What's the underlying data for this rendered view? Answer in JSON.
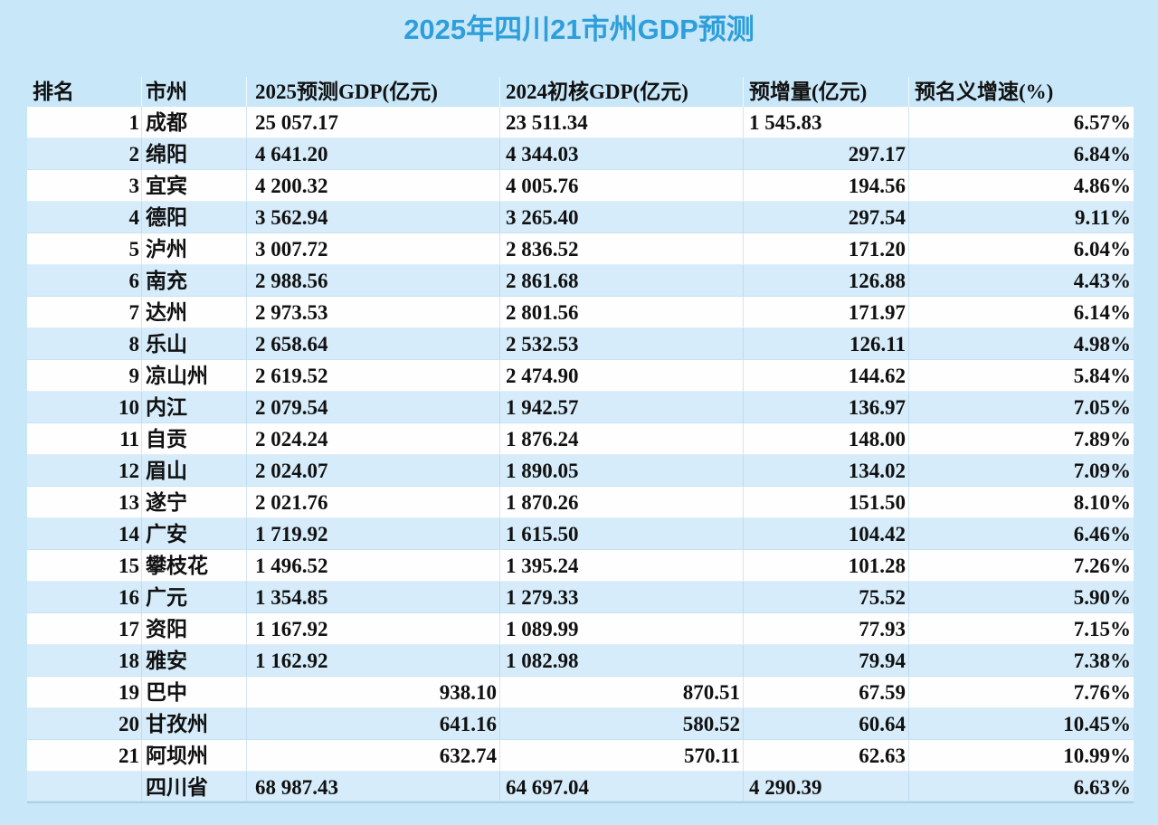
{
  "title": "2025年四川21市州GDP预测",
  "colors": {
    "page_background": "#c8e7f8",
    "row_white": "#fefefe",
    "row_blue": "#d6ecfa",
    "title_blue": "#2e9edb",
    "text": "#111111"
  },
  "table": {
    "columns": [
      {
        "key": "rank",
        "label": "排名"
      },
      {
        "key": "city",
        "label": "市州"
      },
      {
        "key": "gdp2025",
        "label": "2025预测GDP(亿元)"
      },
      {
        "key": "gdp2024",
        "label": "2024初核GDP(亿元)"
      },
      {
        "key": "increase",
        "label": "预增量(亿元)"
      },
      {
        "key": "growth",
        "label": "预名义增速(%)"
      }
    ],
    "rows": [
      {
        "rank": "1",
        "city": "成都",
        "gdp2025": "25 057.17",
        "gdp2024": "23 511.34",
        "increase": "1 545.83",
        "growth": "6.57%"
      },
      {
        "rank": "2",
        "city": "绵阳",
        "gdp2025": "4 641.20",
        "gdp2024": "4 344.03",
        "increase": "297.17",
        "growth": "6.84%"
      },
      {
        "rank": "3",
        "city": "宜宾",
        "gdp2025": "4 200.32",
        "gdp2024": "4 005.76",
        "increase": "194.56",
        "growth": "4.86%"
      },
      {
        "rank": "4",
        "city": "德阳",
        "gdp2025": "3 562.94",
        "gdp2024": "3 265.40",
        "increase": "297.54",
        "growth": "9.11%"
      },
      {
        "rank": "5",
        "city": "泸州",
        "gdp2025": "3 007.72",
        "gdp2024": "2 836.52",
        "increase": "171.20",
        "growth": "6.04%"
      },
      {
        "rank": "6",
        "city": "南充",
        "gdp2025": "2 988.56",
        "gdp2024": "2 861.68",
        "increase": "126.88",
        "growth": "4.43%"
      },
      {
        "rank": "7",
        "city": "达州",
        "gdp2025": "2 973.53",
        "gdp2024": "2 801.56",
        "increase": "171.97",
        "growth": "6.14%"
      },
      {
        "rank": "8",
        "city": "乐山",
        "gdp2025": "2 658.64",
        "gdp2024": "2 532.53",
        "increase": "126.11",
        "growth": "4.98%"
      },
      {
        "rank": "9",
        "city": "凉山州",
        "gdp2025": "2 619.52",
        "gdp2024": "2 474.90",
        "increase": "144.62",
        "growth": "5.84%"
      },
      {
        "rank": "10",
        "city": "内江",
        "gdp2025": "2 079.54",
        "gdp2024": "1 942.57",
        "increase": "136.97",
        "growth": "7.05%"
      },
      {
        "rank": "11",
        "city": "自贡",
        "gdp2025": "2 024.24",
        "gdp2024": "1 876.24",
        "increase": "148.00",
        "growth": "7.89%"
      },
      {
        "rank": "12",
        "city": "眉山",
        "gdp2025": "2 024.07",
        "gdp2024": "1 890.05",
        "increase": "134.02",
        "growth": "7.09%"
      },
      {
        "rank": "13",
        "city": "遂宁",
        "gdp2025": "2 021.76",
        "gdp2024": "1 870.26",
        "increase": "151.50",
        "growth": "8.10%"
      },
      {
        "rank": "14",
        "city": "广安",
        "gdp2025": "1 719.92",
        "gdp2024": "1 615.50",
        "increase": "104.42",
        "growth": "6.46%"
      },
      {
        "rank": "15",
        "city": "攀枝花",
        "gdp2025": "1 496.52",
        "gdp2024": "1 395.24",
        "increase": "101.28",
        "growth": "7.26%"
      },
      {
        "rank": "16",
        "city": "广元",
        "gdp2025": "1 354.85",
        "gdp2024": "1 279.33",
        "increase": "75.52",
        "growth": "5.90%"
      },
      {
        "rank": "17",
        "city": "资阳",
        "gdp2025": "1 167.92",
        "gdp2024": "1 089.99",
        "increase": "77.93",
        "growth": "7.15%"
      },
      {
        "rank": "18",
        "city": "雅安",
        "gdp2025": "1 162.92",
        "gdp2024": "1 082.98",
        "increase": "79.94",
        "growth": "7.38%"
      },
      {
        "rank": "19",
        "city": "巴中",
        "gdp2025": "938.10",
        "gdp2024": "870.51",
        "increase": "67.59",
        "growth": "7.76%"
      },
      {
        "rank": "20",
        "city": "甘孜州",
        "gdp2025": "641.16",
        "gdp2024": "580.52",
        "increase": "60.64",
        "growth": "10.45%"
      },
      {
        "rank": "21",
        "city": "阿坝州",
        "gdp2025": "632.74",
        "gdp2024": "570.11",
        "increase": "62.63",
        "growth": "10.99%"
      }
    ],
    "total_row": {
      "rank": "",
      "city": "四川省",
      "gdp2025": "68 987.43",
      "gdp2024": "64 697.04",
      "increase": "4 290.39",
      "growth": "6.63%"
    }
  },
  "chart_data": {
    "type": "table",
    "title": "2025年四川21市州GDP预测",
    "columns": [
      "排名",
      "市州",
      "2025预测GDP(亿元)",
      "2024初核GDP(亿元)",
      "预增量(亿元)",
      "预名义增速(%)"
    ],
    "rows": [
      [
        1,
        "成都",
        25057.17,
        23511.34,
        1545.83,
        6.57
      ],
      [
        2,
        "绵阳",
        4641.2,
        4344.03,
        297.17,
        6.84
      ],
      [
        3,
        "宜宾",
        4200.32,
        4005.76,
        194.56,
        4.86
      ],
      [
        4,
        "德阳",
        3562.94,
        3265.4,
        297.54,
        9.11
      ],
      [
        5,
        "泸州",
        3007.72,
        2836.52,
        171.2,
        6.04
      ],
      [
        6,
        "南充",
        2988.56,
        2861.68,
        126.88,
        4.43
      ],
      [
        7,
        "达州",
        2973.53,
        2801.56,
        171.97,
        6.14
      ],
      [
        8,
        "乐山",
        2658.64,
        2532.53,
        126.11,
        4.98
      ],
      [
        9,
        "凉山州",
        2619.52,
        2474.9,
        144.62,
        5.84
      ],
      [
        10,
        "内江",
        2079.54,
        1942.57,
        136.97,
        7.05
      ],
      [
        11,
        "自贡",
        2024.24,
        1876.24,
        148.0,
        7.89
      ],
      [
        12,
        "眉山",
        2024.07,
        1890.05,
        134.02,
        7.09
      ],
      [
        13,
        "遂宁",
        2021.76,
        1870.26,
        151.5,
        8.1
      ],
      [
        14,
        "广安",
        1719.92,
        1615.5,
        104.42,
        6.46
      ],
      [
        15,
        "攀枝花",
        1496.52,
        1395.24,
        101.28,
        7.26
      ],
      [
        16,
        "广元",
        1354.85,
        1279.33,
        75.52,
        5.9
      ],
      [
        17,
        "资阳",
        1167.92,
        1089.99,
        77.93,
        7.15
      ],
      [
        18,
        "雅安",
        1162.92,
        1082.98,
        79.94,
        7.38
      ],
      [
        19,
        "巴中",
        938.1,
        870.51,
        67.59,
        7.76
      ],
      [
        20,
        "甘孜州",
        641.16,
        580.52,
        60.64,
        10.45
      ],
      [
        21,
        "阿坝州",
        632.74,
        570.11,
        62.63,
        10.99
      ]
    ],
    "total_row": [
      null,
      "四川省",
      68987.43,
      64697.04,
      4290.39,
      6.63
    ]
  }
}
